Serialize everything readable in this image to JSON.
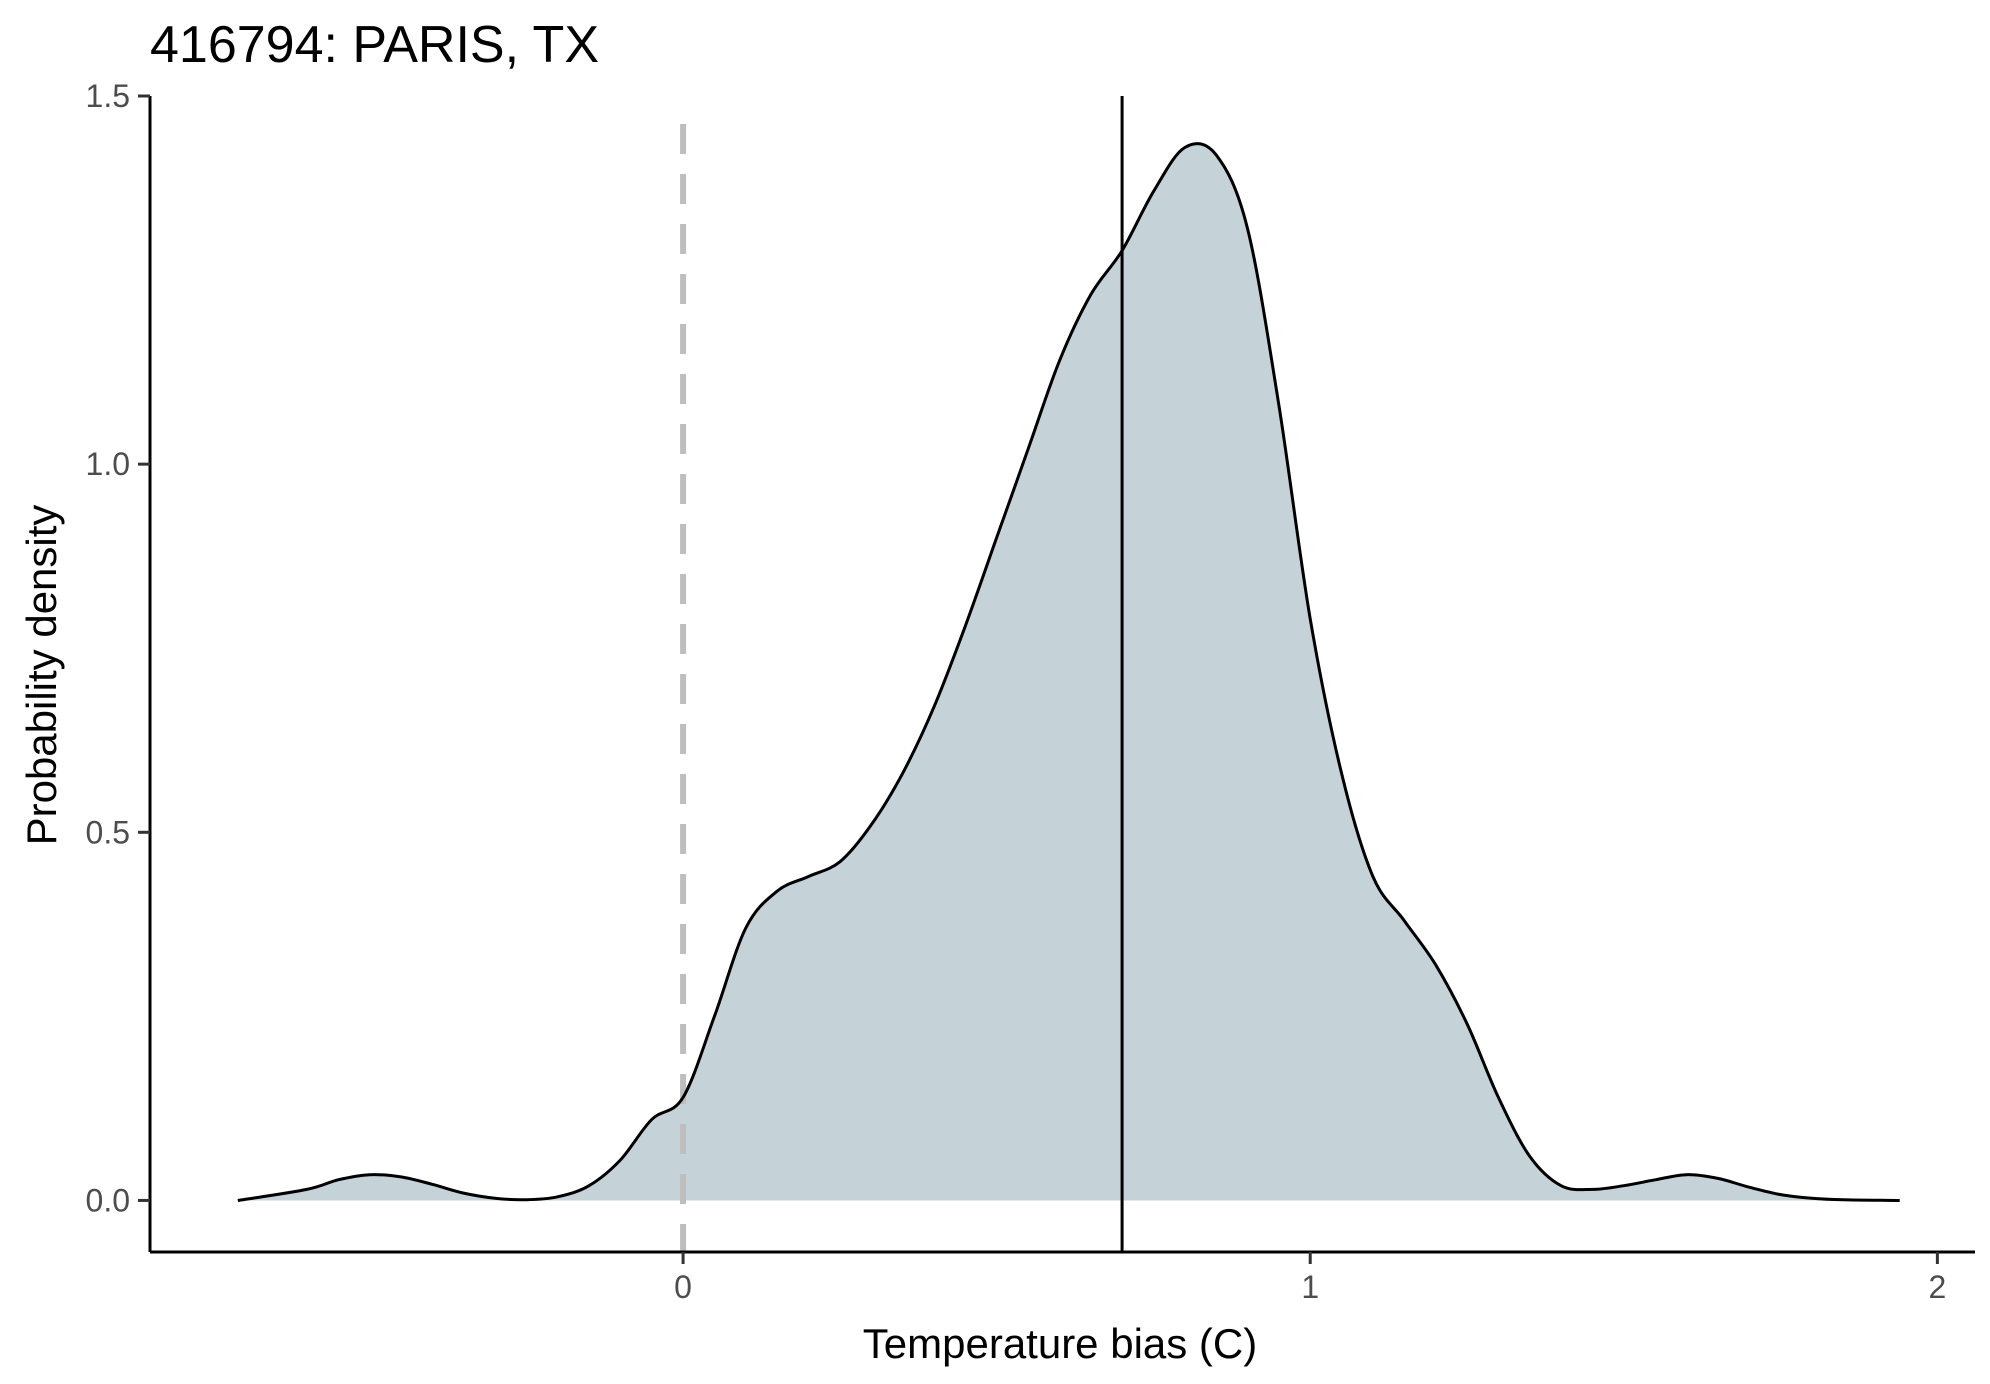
{
  "chart_data": {
    "type": "area",
    "title": "416794: PARIS, TX",
    "xlabel": "Temperature bias (C)",
    "ylabel": "Probability density",
    "xlim": [
      -0.85,
      2.06
    ],
    "ylim": [
      -0.07,
      1.5
    ],
    "x_ticks": [
      0,
      1,
      2
    ],
    "x_tick_labels": [
      "0",
      "1",
      "2"
    ],
    "y_ticks": [
      0.0,
      0.5,
      1.0,
      1.5
    ],
    "y_tick_labels": [
      "0.0",
      "0.5",
      "1.0",
      "1.5"
    ],
    "grid": false,
    "legend": "none",
    "fill_color": "#c5d3d9",
    "line_color": "#000000",
    "reference_lines": [
      {
        "x": 0,
        "style": "dashed",
        "color": "#bebebe"
      },
      {
        "x": 0.7,
        "style": "solid",
        "color": "#000000"
      }
    ],
    "series": [
      {
        "x": [
          -0.71,
          -0.6,
          -0.55,
          -0.5,
          -0.45,
          -0.4,
          -0.35,
          -0.3,
          -0.25,
          -0.2,
          -0.15,
          -0.1,
          -0.05,
          0.0,
          0.05,
          0.1,
          0.15,
          0.2,
          0.25,
          0.3,
          0.35,
          0.4,
          0.45,
          0.5,
          0.55,
          0.6,
          0.65,
          0.7,
          0.75,
          0.8,
          0.85,
          0.9,
          0.95,
          1.0,
          1.05,
          1.1,
          1.15,
          1.2,
          1.25,
          1.3,
          1.35,
          1.4,
          1.45,
          1.5,
          1.55,
          1.6,
          1.65,
          1.7,
          1.75,
          1.8,
          1.85,
          1.94
        ],
        "y": [
          0.0,
          0.015,
          0.028,
          0.035,
          0.032,
          0.022,
          0.01,
          0.003,
          0.001,
          0.005,
          0.02,
          0.055,
          0.11,
          0.14,
          0.25,
          0.37,
          0.42,
          0.44,
          0.46,
          0.51,
          0.58,
          0.67,
          0.78,
          0.9,
          1.02,
          1.14,
          1.23,
          1.29,
          1.37,
          1.43,
          1.42,
          1.32,
          1.08,
          0.79,
          0.58,
          0.44,
          0.38,
          0.32,
          0.24,
          0.14,
          0.06,
          0.02,
          0.015,
          0.02,
          0.028,
          0.035,
          0.03,
          0.018,
          0.008,
          0.003,
          0.001,
          0.0
        ]
      }
    ]
  }
}
